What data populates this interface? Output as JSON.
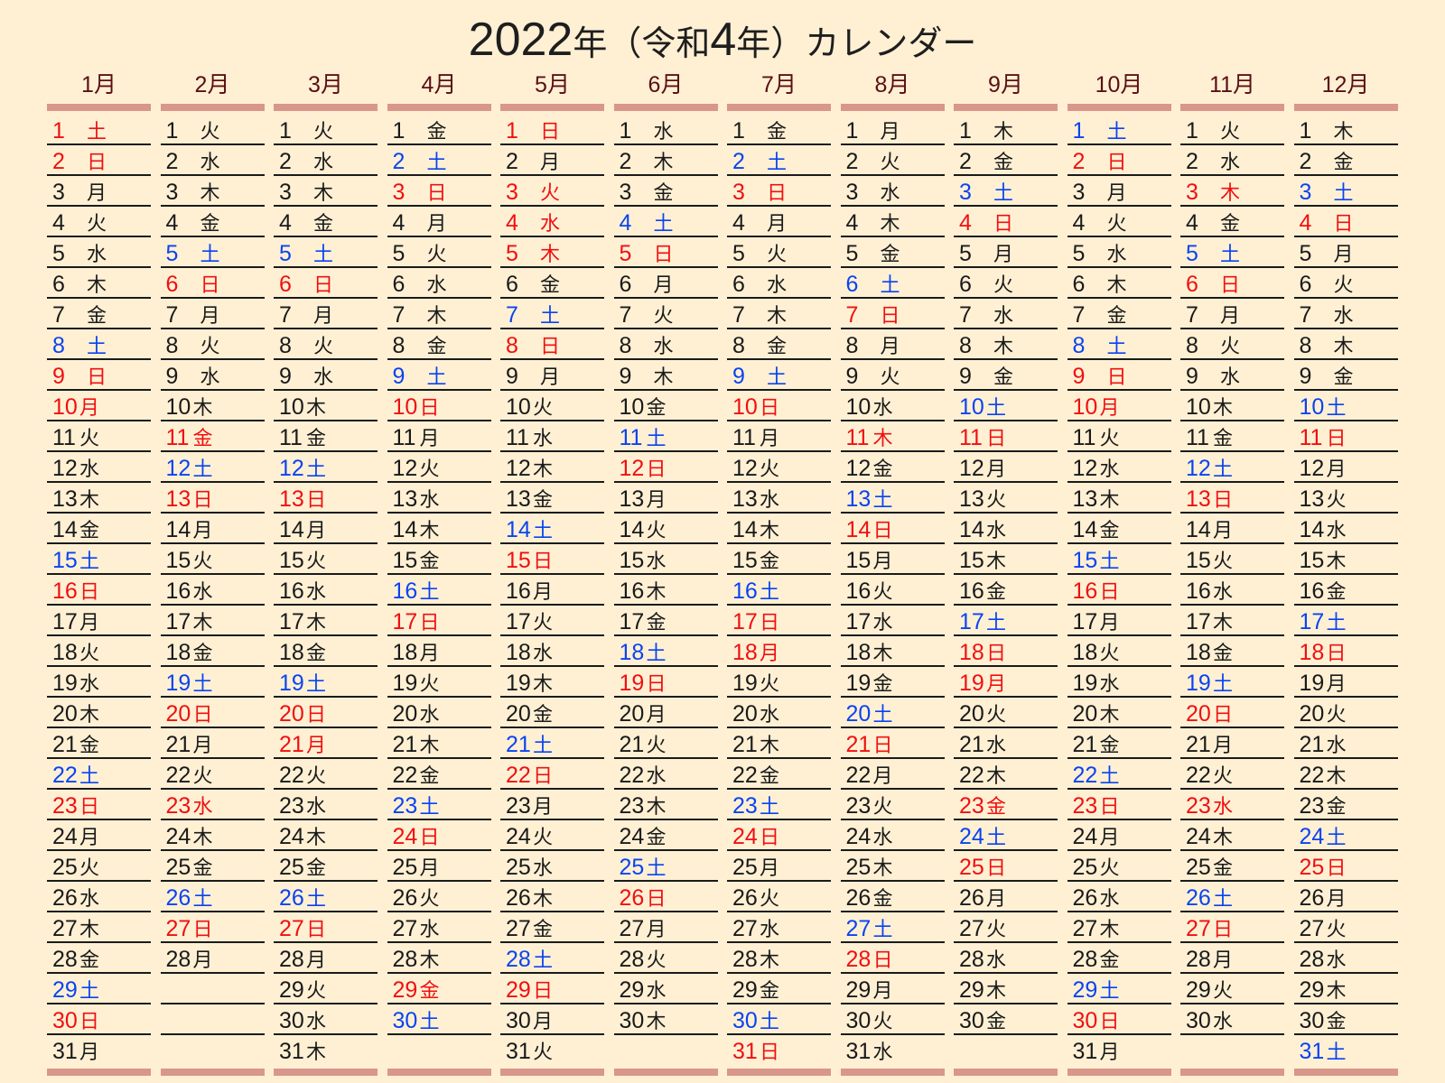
{
  "title": "2022年（令和4年）カレンダー",
  "title_parts": {
    "year": "2022",
    "y1": "年",
    "open": "（令和",
    "era_num": "4",
    "y2": "年）",
    "rest": "カレンダー"
  },
  "colors": {
    "background": "#fff0d4",
    "month_header": "#5a0f14",
    "bar": "#d9968a",
    "saturday": "#0a44f0",
    "holiday": "#f01010",
    "weekday": "#1a1a1a"
  },
  "months": [
    {
      "label": "1月",
      "first_weekday": 6,
      "days": 31,
      "holidays": [
        1,
        2,
        9,
        10,
        16,
        23,
        30
      ]
    },
    {
      "label": "2月",
      "first_weekday": 2,
      "days": 28,
      "holidays": [
        6,
        11,
        13,
        20,
        23,
        27
      ]
    },
    {
      "label": "3月",
      "first_weekday": 2,
      "days": 31,
      "holidays": [
        6,
        13,
        20,
        21,
        27
      ]
    },
    {
      "label": "4月",
      "first_weekday": 5,
      "days": 30,
      "holidays": [
        3,
        10,
        17,
        24,
        29
      ]
    },
    {
      "label": "5月",
      "first_weekday": 0,
      "days": 31,
      "holidays": [
        1,
        3,
        4,
        5,
        8,
        15,
        22,
        29
      ]
    },
    {
      "label": "6月",
      "first_weekday": 3,
      "days": 30,
      "holidays": [
        5,
        12,
        19,
        26
      ]
    },
    {
      "label": "7月",
      "first_weekday": 5,
      "days": 31,
      "holidays": [
        3,
        10,
        17,
        18,
        24,
        31
      ]
    },
    {
      "label": "8月",
      "first_weekday": 1,
      "days": 31,
      "holidays": [
        7,
        11,
        14,
        21,
        28
      ]
    },
    {
      "label": "9月",
      "first_weekday": 4,
      "days": 30,
      "holidays": [
        4,
        11,
        18,
        19,
        23,
        25
      ]
    },
    {
      "label": "10月",
      "first_weekday": 6,
      "days": 31,
      "holidays": [
        2,
        9,
        10,
        16,
        23,
        30
      ]
    },
    {
      "label": "11月",
      "first_weekday": 2,
      "days": 30,
      "holidays": [
        3,
        6,
        13,
        20,
        23,
        27
      ]
    },
    {
      "label": "12月",
      "first_weekday": 4,
      "days": 31,
      "holidays": [
        4,
        11,
        18,
        25
      ]
    }
  ],
  "weekday_names": [
    "日",
    "月",
    "火",
    "水",
    "木",
    "金",
    "土"
  ]
}
